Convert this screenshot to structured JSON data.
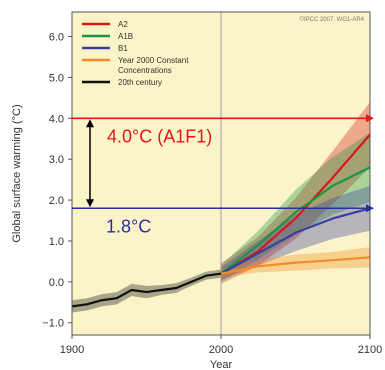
{
  "chart_data": {
    "type": "line",
    "credit": "©IPCC 2007: WG1-AR4",
    "xlabel": "Year",
    "ylabel": "Global surface warming (°C)",
    "xlim": [
      1900,
      2100
    ],
    "ylim": [
      -1.3,
      6.6
    ],
    "xticks": [
      1900,
      2000,
      2100
    ],
    "yticks": [
      -1.0,
      0.0,
      1.0,
      2.0,
      3.0,
      4.0,
      5.0,
      6.0
    ],
    "grid": false,
    "legend_position": "top-left",
    "series": [
      {
        "name": "A2",
        "color": "#d7191c",
        "x": [
          2000,
          2025,
          2050,
          2075,
          2100
        ],
        "y": [
          0.2,
          0.75,
          1.55,
          2.55,
          3.6
        ],
        "band": [
          0.25,
          0.35,
          0.5,
          0.65,
          0.8
        ]
      },
      {
        "name": "A1B",
        "color": "#1a9641",
        "x": [
          2000,
          2025,
          2050,
          2075,
          2100
        ],
        "y": [
          0.2,
          0.9,
          1.7,
          2.35,
          2.8
        ],
        "band": [
          0.2,
          0.35,
          0.55,
          0.7,
          0.85
        ]
      },
      {
        "name": "B1",
        "color": "#3b3fa0",
        "x": [
          2000,
          2025,
          2050,
          2075,
          2100
        ],
        "y": [
          0.2,
          0.7,
          1.2,
          1.55,
          1.8
        ],
        "band": [
          0.15,
          0.3,
          0.45,
          0.5,
          0.55
        ]
      },
      {
        "name": "Year 2000 Constant Concentrations",
        "color": "#f28c28",
        "x": [
          2000,
          2025,
          2050,
          2075,
          2100
        ],
        "y": [
          0.2,
          0.38,
          0.47,
          0.53,
          0.6
        ],
        "band": [
          0.1,
          0.15,
          0.2,
          0.2,
          0.25
        ]
      },
      {
        "name": "20th century",
        "color": "#111111",
        "x": [
          1900,
          1910,
          1920,
          1930,
          1940,
          1950,
          1960,
          1970,
          1980,
          1990,
          2000
        ],
        "y": [
          -0.6,
          -0.55,
          -0.45,
          -0.4,
          -0.2,
          -0.25,
          -0.2,
          -0.15,
          0.0,
          0.15,
          0.2
        ],
        "band": [
          0.15,
          0.15,
          0.15,
          0.15,
          0.15,
          0.15,
          0.12,
          0.12,
          0.1,
          0.1,
          0.1
        ]
      }
    ],
    "annotations": [
      {
        "text": "4.0°C (A1F1)",
        "y": 4.0,
        "color": "#e8141c"
      },
      {
        "text": "1.8°C",
        "y": 1.8,
        "color": "#2b2f9e"
      }
    ]
  },
  "styles": {
    "plot_background": "#fbf4c8",
    "divider_color": "#a0a0a0",
    "arrow_color": "#000000"
  }
}
